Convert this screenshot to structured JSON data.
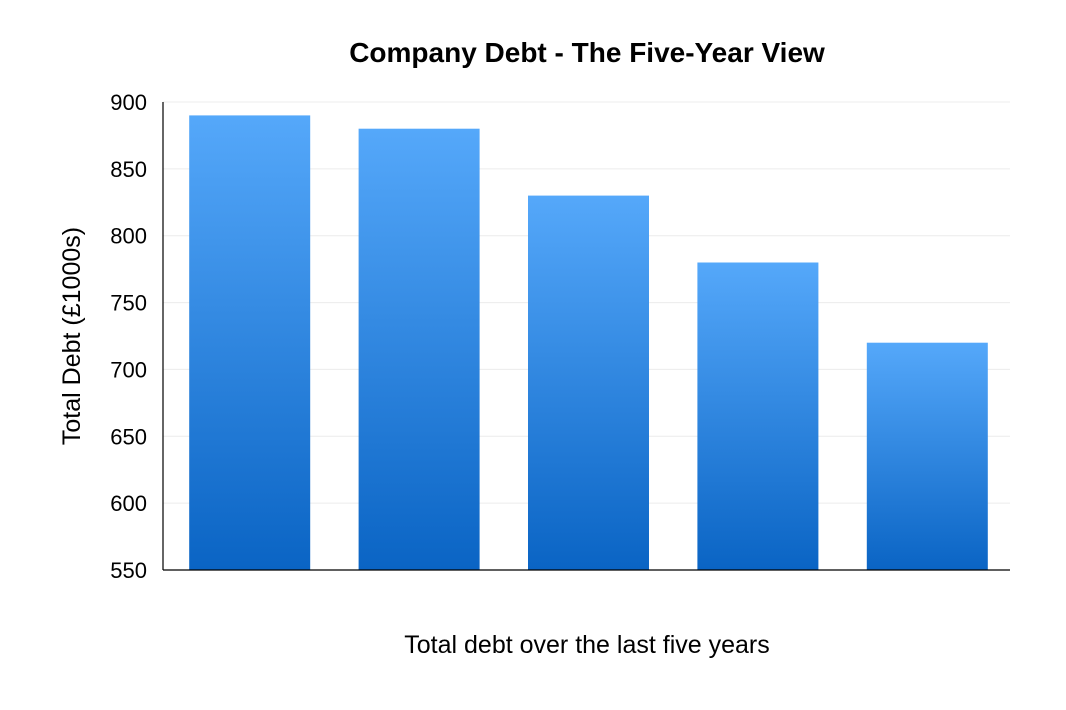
{
  "chart_data": {
    "type": "bar",
    "title": "Company Debt - The Five-Year View",
    "xlabel": "Total debt over the last five years",
    "ylabel": "Total Debt (£1000s)",
    "categories": [
      "",
      "",
      "",
      "",
      ""
    ],
    "values": [
      890,
      880,
      830,
      780,
      720
    ],
    "ylim": [
      550,
      900
    ],
    "yticks": [
      550,
      600,
      650,
      700,
      750,
      800,
      850,
      900
    ],
    "ytick_labels": [
      "550",
      "600",
      "650",
      "700",
      "750",
      "800",
      "850",
      "900"
    ],
    "grid": true,
    "legend": "none",
    "colors": {
      "bar_top": "#55a8fa",
      "bar_bottom": "#0a64c4",
      "grid": "#ececec",
      "axis": "#000000"
    }
  }
}
